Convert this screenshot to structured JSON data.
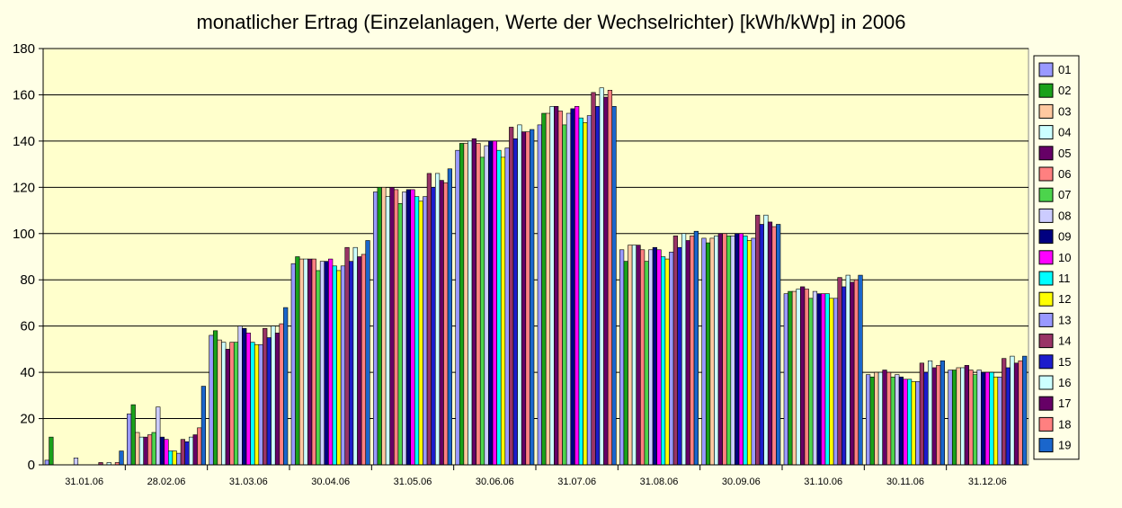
{
  "chart_data": {
    "type": "bar",
    "title": "monatlicher Ertrag (Einzelanlagen, Werte der Wechselrichter) [kWh/kWp] in 2006",
    "xlabel": "",
    "ylabel": "",
    "ylim": [
      0,
      180
    ],
    "yticks": [
      "0",
      "20",
      "40",
      "60",
      "80",
      "100",
      "120",
      "140",
      "160",
      "180"
    ],
    "grid": true,
    "legend_position": "right",
    "categories": [
      "31.01.06",
      "28.02.06",
      "31.03.06",
      "30.04.06",
      "31.05.06",
      "30.06.06",
      "31.07.06",
      "31.08.06",
      "30.09.06",
      "31.10.06",
      "30.11.06",
      "31.12.06"
    ],
    "series": [
      {
        "name": "01",
        "color": "#9999ff",
        "values": [
          2,
          22,
          56,
          87,
          118,
          136,
          147,
          93,
          98,
          74,
          39,
          41
        ]
      },
      {
        "name": "02",
        "color": "#1aa11a",
        "values": [
          12,
          26,
          58,
          90,
          120,
          139,
          152,
          88,
          96,
          75,
          38,
          41
        ]
      },
      {
        "name": "03",
        "color": "#ffc8a0",
        "values": [
          0,
          14,
          54,
          89,
          120,
          139,
          152,
          95,
          98,
          75,
          40,
          42
        ]
      },
      {
        "name": "04",
        "color": "#ccffff",
        "values": [
          0,
          12,
          53,
          89,
          116,
          140,
          155,
          95,
          99,
          76,
          40,
          42
        ]
      },
      {
        "name": "05",
        "color": "#660066",
        "values": [
          0,
          12,
          50,
          89,
          120,
          141,
          155,
          95,
          100,
          77,
          41,
          43
        ]
      },
      {
        "name": "06",
        "color": "#ff8080",
        "values": [
          0,
          13,
          53,
          89,
          119,
          139,
          153,
          93,
          100,
          76,
          40,
          41
        ]
      },
      {
        "name": "07",
        "color": "#4cd44c",
        "values": [
          0,
          14,
          53,
          84,
          113,
          133,
          147,
          88,
          99,
          72,
          38,
          39
        ]
      },
      {
        "name": "08",
        "color": "#ccccff",
        "values": [
          3,
          25,
          60,
          88,
          118,
          138,
          152,
          93,
          99,
          75,
          39,
          41
        ]
      },
      {
        "name": "09",
        "color": "#000080",
        "values": [
          0,
          12,
          59,
          88,
          119,
          140,
          154,
          94,
          100,
          74,
          38,
          40
        ]
      },
      {
        "name": "10",
        "color": "#ff00ff",
        "values": [
          0,
          11,
          57,
          89,
          119,
          140,
          155,
          93,
          100,
          74,
          37,
          40
        ]
      },
      {
        "name": "11",
        "color": "#00ffff",
        "values": [
          0,
          6,
          53,
          86,
          116,
          136,
          150,
          90,
          99,
          74,
          37,
          40
        ]
      },
      {
        "name": "12",
        "color": "#ffff00",
        "values": [
          0,
          6,
          52,
          84,
          114,
          133,
          148,
          89,
          97,
          72,
          36,
          38
        ]
      },
      {
        "name": "13",
        "color": "#9999ff",
        "values": [
          0,
          5,
          52,
          86,
          116,
          137,
          151,
          92,
          98,
          72,
          36,
          38
        ]
      },
      {
        "name": "14",
        "color": "#993366",
        "values": [
          1,
          11,
          59,
          94,
          126,
          146,
          161,
          99,
          108,
          81,
          44,
          46
        ]
      },
      {
        "name": "15",
        "color": "#1c1ccc",
        "values": [
          0,
          10,
          55,
          88,
          120,
          141,
          155,
          94,
          104,
          77,
          40,
          42
        ]
      },
      {
        "name": "16",
        "color": "#ccffff",
        "values": [
          1,
          12,
          60,
          94,
          126,
          147,
          163,
          100,
          108,
          82,
          45,
          47
        ]
      },
      {
        "name": "17",
        "color": "#660066",
        "values": [
          0,
          13,
          57,
          90,
          123,
          144,
          159,
          97,
          105,
          79,
          42,
          44
        ]
      },
      {
        "name": "18",
        "color": "#ff8080",
        "values": [
          1,
          16,
          61,
          91,
          122,
          144,
          162,
          99,
          103,
          80,
          43,
          45
        ]
      },
      {
        "name": "19",
        "color": "#1a66cc",
        "values": [
          6,
          34,
          68,
          97,
          128,
          145,
          155,
          101,
          104,
          82,
          45,
          47
        ]
      }
    ]
  }
}
